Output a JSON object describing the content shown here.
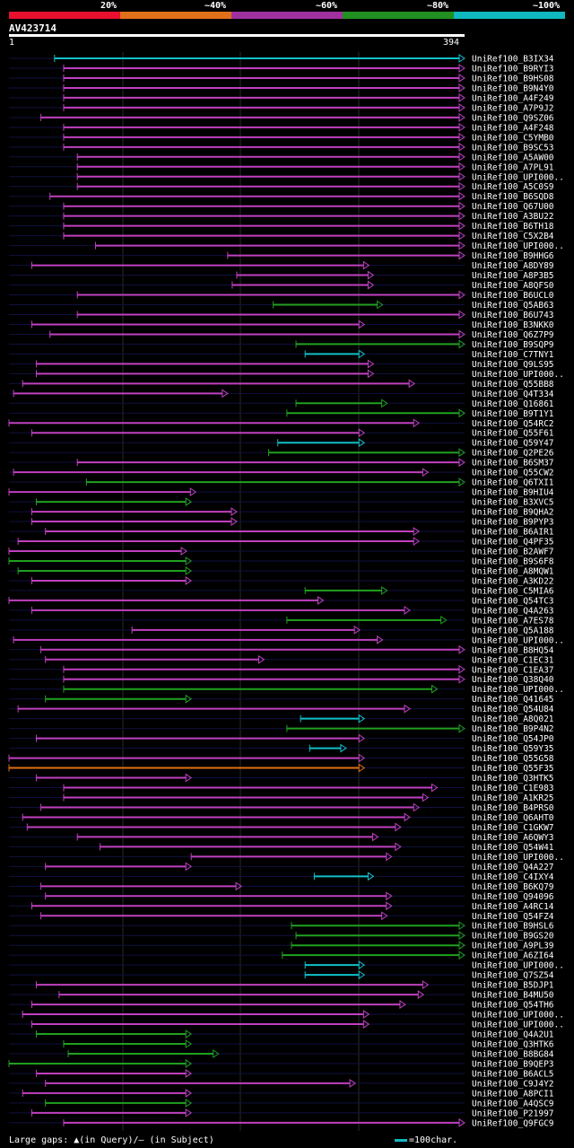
{
  "legend": {
    "segments": [
      {
        "label": "20%",
        "color": "#e8102e"
      },
      {
        "label": "~40%",
        "color": "#e0701a"
      },
      {
        "label": "~60%",
        "color": "#a030a0"
      },
      {
        "label": "~80%",
        "color": "#209020"
      },
      {
        "label": "~100%",
        "color": "#10b8c0"
      }
    ]
  },
  "query": {
    "name": "AV423714",
    "start": "1",
    "end": "394"
  },
  "footer": {
    "gaps_label": "Large gaps: ▲(in Query)/– (in Subject)",
    "scale_label": "=100char."
  },
  "hits": [
    {
      "name": "UniRef100_B3IX34",
      "s": 0.1,
      "e": 1.0,
      "c": "cyan"
    },
    {
      "name": "UniRef100_B9RYI3",
      "s": 0.12,
      "e": 1.0,
      "c": "purple"
    },
    {
      "name": "UniRef100_B9HS08",
      "s": 0.12,
      "e": 1.0,
      "c": "purple"
    },
    {
      "name": "UniRef100_B9N4Y0",
      "s": 0.12,
      "e": 1.0,
      "c": "purple"
    },
    {
      "name": "UniRef100_A4F249",
      "s": 0.12,
      "e": 1.0,
      "c": "purple"
    },
    {
      "name": "UniRef100_A7P9J2",
      "s": 0.12,
      "e": 1.0,
      "c": "purple"
    },
    {
      "name": "UniRef100_Q9SZ06",
      "s": 0.07,
      "e": 1.0,
      "c": "purple"
    },
    {
      "name": "UniRef100_A4F248",
      "s": 0.12,
      "e": 1.0,
      "c": "purple"
    },
    {
      "name": "UniRef100_C5YMB0",
      "s": 0.12,
      "e": 1.0,
      "c": "purple"
    },
    {
      "name": "UniRef100_B9SC53",
      "s": 0.12,
      "e": 1.0,
      "c": "purple"
    },
    {
      "name": "UniRef100_A5AW00",
      "s": 0.15,
      "e": 1.0,
      "c": "purple"
    },
    {
      "name": "UniRef100_A7PL91",
      "s": 0.15,
      "e": 1.0,
      "c": "purple"
    },
    {
      "name": "UniRef100_UPI000..",
      "s": 0.15,
      "e": 1.0,
      "c": "purple"
    },
    {
      "name": "UniRef100_A5C0S9",
      "s": 0.15,
      "e": 1.0,
      "c": "purple"
    },
    {
      "name": "UniRef100_B6SQD8",
      "s": 0.09,
      "e": 1.0,
      "c": "purple"
    },
    {
      "name": "UniRef100_Q67U00",
      "s": 0.12,
      "e": 1.0,
      "c": "purple"
    },
    {
      "name": "UniRef100_A3BU22",
      "s": 0.12,
      "e": 1.0,
      "c": "purple"
    },
    {
      "name": "UniRef100_B6TH18",
      "s": 0.12,
      "e": 1.0,
      "c": "purple"
    },
    {
      "name": "UniRef100_C5X2B4",
      "s": 0.12,
      "e": 1.0,
      "c": "purple"
    },
    {
      "name": "UniRef100_UPI000..",
      "s": 0.19,
      "e": 1.0,
      "c": "purple"
    },
    {
      "name": "UniRef100_B9HHG6",
      "s": 0.48,
      "e": 1.0,
      "c": "purple"
    },
    {
      "name": "UniRef100_A8DY89",
      "s": 0.05,
      "e": 0.79,
      "c": "purple"
    },
    {
      "name": "UniRef100_A8P3B5",
      "s": 0.5,
      "e": 0.8,
      "c": "purple"
    },
    {
      "name": "UniRef100_A8QFS0",
      "s": 0.49,
      "e": 0.8,
      "c": "purple"
    },
    {
      "name": "UniRef100_B6UCL0",
      "s": 0.15,
      "e": 1.0,
      "c": "purple"
    },
    {
      "name": "UniRef100_Q5AB63",
      "s": 0.58,
      "e": 0.82,
      "c": "green"
    },
    {
      "name": "UniRef100_B6U743",
      "s": 0.15,
      "e": 1.0,
      "c": "purple"
    },
    {
      "name": "UniRef100_B3NKK0",
      "s": 0.05,
      "e": 0.78,
      "c": "purple"
    },
    {
      "name": "UniRef100_Q6Z7P9",
      "s": 0.09,
      "e": 1.0,
      "c": "purple"
    },
    {
      "name": "UniRef100_B9SQP9",
      "s": 0.63,
      "e": 1.0,
      "c": "green"
    },
    {
      "name": "UniRef100_C7TNY1",
      "s": 0.65,
      "e": 0.78,
      "c": "cyan"
    },
    {
      "name": "UniRef100_Q9LS95",
      "s": 0.06,
      "e": 0.8,
      "c": "purple"
    },
    {
      "name": "UniRef100_UPI000..",
      "s": 0.06,
      "e": 0.8,
      "c": "purple"
    },
    {
      "name": "UniRef100_Q55BB8",
      "s": 0.03,
      "e": 0.89,
      "c": "purple"
    },
    {
      "name": "UniRef100_Q4T334",
      "s": 0.01,
      "e": 0.48,
      "c": "purple"
    },
    {
      "name": "UniRef100_Q16861",
      "s": 0.63,
      "e": 0.83,
      "c": "green"
    },
    {
      "name": "UniRef100_B9T1Y1",
      "s": 0.61,
      "e": 1.0,
      "c": "green"
    },
    {
      "name": "UniRef100_Q54RC2",
      "s": 0.0,
      "e": 0.9,
      "c": "purple"
    },
    {
      "name": "UniRef100_Q55F61",
      "s": 0.05,
      "e": 0.78,
      "c": "purple"
    },
    {
      "name": "UniRef100_Q59Y47",
      "s": 0.59,
      "e": 0.78,
      "c": "cyan"
    },
    {
      "name": "UniRef100_Q2PE26",
      "s": 0.57,
      "e": 1.0,
      "c": "green"
    },
    {
      "name": "UniRef100_B6SM37",
      "s": 0.15,
      "e": 1.0,
      "c": "purple"
    },
    {
      "name": "UniRef100_Q55CW2",
      "s": 0.01,
      "e": 0.92,
      "c": "purple"
    },
    {
      "name": "UniRef100_Q6TXI1",
      "s": 0.17,
      "e": 1.0,
      "c": "green"
    },
    {
      "name": "UniRef100_B9HIU4",
      "s": 0.0,
      "e": 0.41,
      "c": "purple"
    },
    {
      "name": "UniRef100_B3XVC5",
      "s": 0.06,
      "e": 0.4,
      "c": "green"
    },
    {
      "name": "UniRef100_B9QHA2",
      "s": 0.05,
      "e": 0.5,
      "c": "purple"
    },
    {
      "name": "UniRef100_B9PYP3",
      "s": 0.05,
      "e": 0.5,
      "c": "purple"
    },
    {
      "name": "UniRef100_B6AIR1",
      "s": 0.08,
      "e": 0.9,
      "c": "purple"
    },
    {
      "name": "UniRef100_Q4PF35",
      "s": 0.02,
      "e": 0.9,
      "c": "purple"
    },
    {
      "name": "UniRef100_B2AWF7",
      "s": 0.0,
      "e": 0.39,
      "c": "purple"
    },
    {
      "name": "UniRef100_B9S6F8",
      "s": 0.0,
      "e": 0.4,
      "c": "green"
    },
    {
      "name": "UniRef100_A8MQW1",
      "s": 0.02,
      "e": 0.4,
      "c": "green"
    },
    {
      "name": "UniRef100_A3KD22",
      "s": 0.05,
      "e": 0.4,
      "c": "purple"
    },
    {
      "name": "UniRef100_C5MIA6",
      "s": 0.65,
      "e": 0.83,
      "c": "green"
    },
    {
      "name": "UniRef100_Q54TC3",
      "s": 0.0,
      "e": 0.69,
      "c": "purple"
    },
    {
      "name": "UniRef100_Q4A263",
      "s": 0.05,
      "e": 0.88,
      "c": "purple"
    },
    {
      "name": "UniRef100_A7ES78",
      "s": 0.61,
      "e": 0.96,
      "c": "green"
    },
    {
      "name": "UniRef100_Q5A188",
      "s": 0.27,
      "e": 0.77,
      "c": "purple"
    },
    {
      "name": "UniRef100_UPI000..",
      "s": 0.01,
      "e": 0.82,
      "c": "purple"
    },
    {
      "name": "UniRef100_B8HQ54",
      "s": 0.07,
      "e": 1.0,
      "c": "purple"
    },
    {
      "name": "UniRef100_C1EC31",
      "s": 0.08,
      "e": 0.56,
      "c": "purple"
    },
    {
      "name": "UniRef100_C1EA37",
      "s": 0.12,
      "e": 1.0,
      "c": "purple"
    },
    {
      "name": "UniRef100_Q38Q40",
      "s": 0.12,
      "e": 1.0,
      "c": "purple"
    },
    {
      "name": "UniRef100_UPI000..",
      "s": 0.12,
      "e": 0.94,
      "c": "green"
    },
    {
      "name": "UniRef100_Q41645",
      "s": 0.08,
      "e": 0.4,
      "c": "green"
    },
    {
      "name": "UniRef100_Q54U84",
      "s": 0.02,
      "e": 0.88,
      "c": "purple"
    },
    {
      "name": "UniRef100_A8Q021",
      "s": 0.64,
      "e": 0.78,
      "c": "cyan"
    },
    {
      "name": "UniRef100_B9P4N2",
      "s": 0.61,
      "e": 1.0,
      "c": "green"
    },
    {
      "name": "UniRef100_Q54JP0",
      "s": 0.06,
      "e": 0.78,
      "c": "purple"
    },
    {
      "name": "UniRef100_Q59Y35",
      "s": 0.66,
      "e": 0.74,
      "c": "cyan"
    },
    {
      "name": "UniRef100_Q55G58",
      "s": 0.0,
      "e": 0.78,
      "c": "purple"
    },
    {
      "name": "UniRef100_Q55F35",
      "s": 0.0,
      "e": 0.78,
      "c": "orange"
    },
    {
      "name": "UniRef100_Q3HTK5",
      "s": 0.06,
      "e": 0.4,
      "c": "purple"
    },
    {
      "name": "UniRef100_C1E983",
      "s": 0.12,
      "e": 0.94,
      "c": "purple"
    },
    {
      "name": "UniRef100_A1KR25",
      "s": 0.12,
      "e": 0.92,
      "c": "purple"
    },
    {
      "name": "UniRef100_B4PRS0",
      "s": 0.07,
      "e": 0.9,
      "c": "purple"
    },
    {
      "name": "UniRef100_Q6AHT0",
      "s": 0.03,
      "e": 0.88,
      "c": "purple"
    },
    {
      "name": "UniRef100_C1GKW7",
      "s": 0.04,
      "e": 0.86,
      "c": "purple"
    },
    {
      "name": "UniRef100_A6QWY3",
      "s": 0.15,
      "e": 0.81,
      "c": "purple"
    },
    {
      "name": "UniRef100_Q54W41",
      "s": 0.2,
      "e": 0.86,
      "c": "purple"
    },
    {
      "name": "UniRef100_UPI000..",
      "s": 0.4,
      "e": 0.84,
      "c": "purple"
    },
    {
      "name": "UniRef100_Q4A227",
      "s": 0.08,
      "e": 0.4,
      "c": "purple"
    },
    {
      "name": "UniRef100_C4IXY4",
      "s": 0.67,
      "e": 0.8,
      "c": "cyan"
    },
    {
      "name": "UniRef100_B6KQ79",
      "s": 0.07,
      "e": 0.51,
      "c": "purple"
    },
    {
      "name": "UniRef100_Q94096",
      "s": 0.08,
      "e": 0.84,
      "c": "purple"
    },
    {
      "name": "UniRef100_A4RC14",
      "s": 0.05,
      "e": 0.84,
      "c": "purple"
    },
    {
      "name": "UniRef100_Q54FZ4",
      "s": 0.07,
      "e": 0.83,
      "c": "purple"
    },
    {
      "name": "UniRef100_B9HSL6",
      "s": 0.62,
      "e": 1.0,
      "c": "green"
    },
    {
      "name": "UniRef100_B9GS20",
      "s": 0.63,
      "e": 1.0,
      "c": "green"
    },
    {
      "name": "UniRef100_A9PL39",
      "s": 0.62,
      "e": 1.0,
      "c": "green"
    },
    {
      "name": "UniRef100_A6ZI64",
      "s": 0.6,
      "e": 1.0,
      "c": "green"
    },
    {
      "name": "UniRef100_UPI000..",
      "s": 0.65,
      "e": 0.78,
      "c": "cyan"
    },
    {
      "name": "UniRef100_Q7SZ54",
      "s": 0.65,
      "e": 0.78,
      "c": "cyan"
    },
    {
      "name": "UniRef100_B5DJP1",
      "s": 0.06,
      "e": 0.92,
      "c": "purple"
    },
    {
      "name": "UniRef100_B4MU50",
      "s": 0.11,
      "e": 0.91,
      "c": "purple"
    },
    {
      "name": "UniRef100_Q54TH6",
      "s": 0.05,
      "e": 0.87,
      "c": "purple"
    },
    {
      "name": "UniRef100_UPI000..",
      "s": 0.03,
      "e": 0.79,
      "c": "purple"
    },
    {
      "name": "UniRef100_UPI000..",
      "s": 0.05,
      "e": 0.79,
      "c": "purple"
    },
    {
      "name": "UniRef100_Q4A2U1",
      "s": 0.06,
      "e": 0.4,
      "c": "green"
    },
    {
      "name": "UniRef100_Q3HTK6",
      "s": 0.12,
      "e": 0.4,
      "c": "green"
    },
    {
      "name": "UniRef100_B8BG84",
      "s": 0.13,
      "e": 0.46,
      "c": "green"
    },
    {
      "name": "UniRef100_B9QEP3",
      "s": 0.0,
      "e": 0.4,
      "c": "green"
    },
    {
      "name": "UniRef100_B6ACL5",
      "s": 0.06,
      "e": 0.4,
      "c": "purple"
    },
    {
      "name": "UniRef100_C9J4Y2",
      "s": 0.08,
      "e": 0.76,
      "c": "purple"
    },
    {
      "name": "UniRef100_A8PCI1",
      "s": 0.03,
      "e": 0.4,
      "c": "purple"
    },
    {
      "name": "UniRef100_A4QSC9",
      "s": 0.08,
      "e": 0.4,
      "c": "green"
    },
    {
      "name": "UniRef100_P21997",
      "s": 0.05,
      "e": 0.4,
      "c": "purple"
    },
    {
      "name": "UniRef100_Q9FGC9",
      "s": 0.12,
      "e": 1.0,
      "c": "purple"
    }
  ]
}
